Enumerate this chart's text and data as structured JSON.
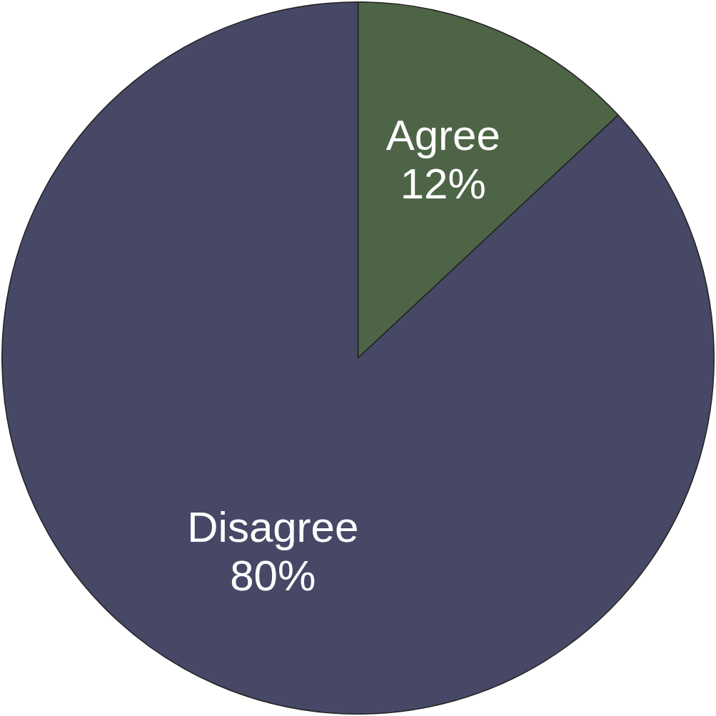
{
  "chart_data": {
    "type": "pie",
    "categories": [
      "Agree",
      "Disagree"
    ],
    "values": [
      12,
      80
    ],
    "colors": [
      "#4e6446",
      "#474866"
    ],
    "value_labels": [
      "12%",
      "80%"
    ],
    "legend": false
  }
}
